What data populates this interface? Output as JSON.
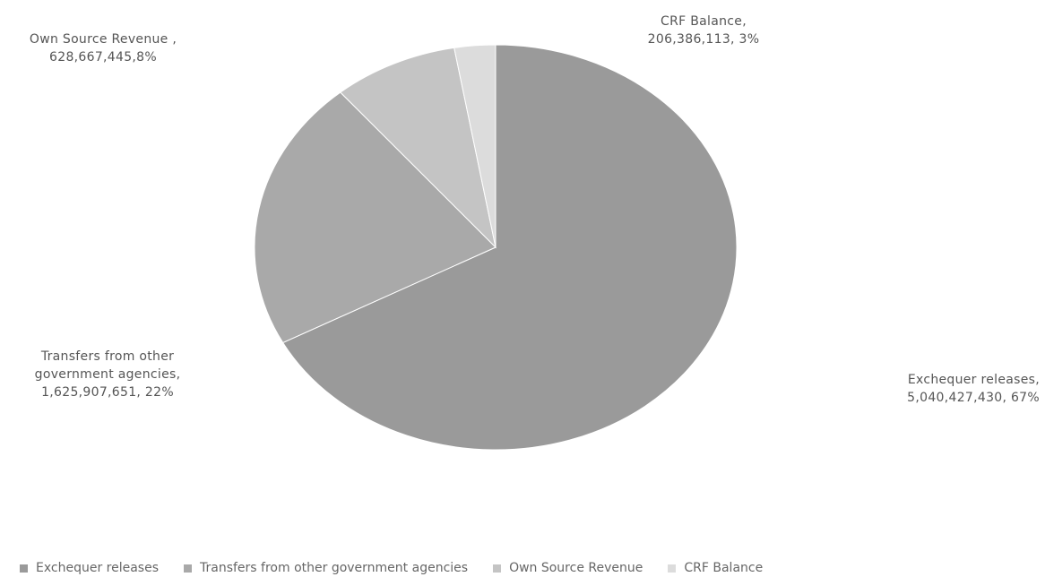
{
  "chart_data": {
    "type": "pie",
    "slices": [
      {
        "label": "Exchequer releases",
        "value": 5040427430,
        "percent": 67,
        "color": "#9a9a9a",
        "label_lines": [
          "Exchequer releases,",
          "5,040,427,430, 67%"
        ]
      },
      {
        "label": "Transfers from other government agencies",
        "value": 1625907651,
        "percent": 22,
        "color": "#a9a9a9",
        "label_lines": [
          "Transfers from other",
          "government agencies,",
          "1,625,907,651, 22%"
        ]
      },
      {
        "label": "Own Source Revenue",
        "value": 628667445,
        "percent": 8,
        "color": "#c4c4c4",
        "label_lines": [
          "Own Source Revenue ,",
          "628,667,445,8%"
        ]
      },
      {
        "label": "CRF Balance",
        "value": 206386113,
        "percent": 3,
        "color": "#dcdcdc",
        "label_lines": [
          "CRF Balance,",
          "206,386,113, 3%"
        ]
      }
    ],
    "legend": {
      "position": "bottom",
      "items": [
        "Exchequer releases",
        "Transfers from other government agencies",
        "Own Source Revenue",
        "CRF Balance"
      ]
    }
  }
}
